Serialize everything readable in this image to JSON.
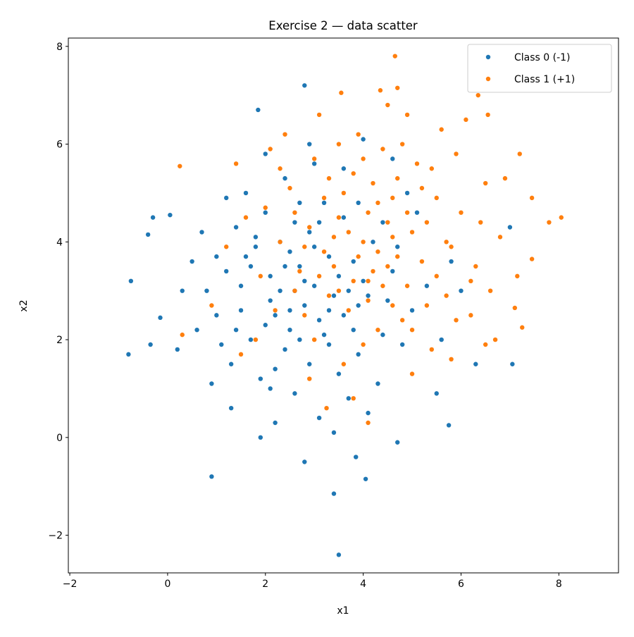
{
  "chart_data": {
    "type": "scatter",
    "title": "Exercise 2 — data scatter",
    "xlabel": "x1",
    "ylabel": "x2",
    "xlim": [
      -2.03,
      9.22
    ],
    "ylim": [
      -2.77,
      8.17
    ],
    "xticks": [
      -2,
      0,
      2,
      4,
      6,
      8
    ],
    "yticks": [
      -2,
      0,
      2,
      4,
      6,
      8
    ],
    "xtick_labels": [
      "−2",
      "0",
      "2",
      "4",
      "6",
      "8"
    ],
    "ytick_labels": [
      "−2",
      "0",
      "2",
      "4",
      "6",
      "8"
    ],
    "grid": false,
    "legend_position": "top-right",
    "series": [
      {
        "name": "Class 0 (-1)",
        "color": "#1f77b4",
        "points": [
          [
            -0.8,
            1.7
          ],
          [
            -0.75,
            3.2
          ],
          [
            -0.4,
            4.15
          ],
          [
            -0.3,
            4.5
          ],
          [
            0.05,
            4.55
          ],
          [
            0.9,
            -0.8
          ],
          [
            3.4,
            -1.15
          ],
          [
            3.5,
            -2.4
          ],
          [
            4.05,
            -0.85
          ],
          [
            2.8,
            7.2
          ],
          [
            1.85,
            6.7
          ],
          [
            7.0,
            4.3
          ],
          [
            7.05,
            1.5
          ],
          [
            5.75,
            0.25
          ],
          [
            4.7,
            -0.1
          ],
          [
            6.3,
            1.5
          ],
          [
            2.8,
            -0.5
          ],
          [
            3.85,
            -0.4
          ],
          [
            -0.15,
            2.45
          ],
          [
            -0.35,
            1.9
          ],
          [
            1.2,
            3.4
          ],
          [
            2.1,
            2.8
          ],
          [
            3.0,
            3.1
          ],
          [
            2.5,
            2.2
          ],
          [
            3.6,
            2.5
          ],
          [
            1.8,
            3.9
          ],
          [
            2.9,
            4.2
          ],
          [
            3.3,
            1.9
          ],
          [
            4.1,
            2.9
          ],
          [
            2.2,
            1.4
          ],
          [
            1.5,
            2.6
          ],
          [
            3.8,
            3.6
          ],
          [
            2.7,
            3.5
          ],
          [
            3.1,
            2.4
          ],
          [
            2.0,
            4.6
          ],
          [
            4.4,
            2.1
          ],
          [
            1.1,
            1.9
          ],
          [
            2.6,
            0.9
          ],
          [
            3.5,
            3.3
          ],
          [
            0.8,
            3.0
          ],
          [
            2.3,
            3.0
          ],
          [
            3.9,
            1.7
          ],
          [
            1.7,
            2.0
          ],
          [
            2.8,
            2.7
          ],
          [
            4.6,
            3.4
          ],
          [
            3.2,
            4.8
          ],
          [
            1.4,
            4.3
          ],
          [
            2.4,
            5.3
          ],
          [
            5.0,
            2.6
          ],
          [
            3.7,
            0.8
          ],
          [
            1.9,
            1.2
          ],
          [
            2.5,
            3.8
          ],
          [
            3.4,
            2.9
          ],
          [
            4.2,
            4.0
          ],
          [
            0.5,
            3.6
          ],
          [
            1.0,
            2.5
          ],
          [
            2.9,
            1.5
          ],
          [
            3.6,
            4.5
          ],
          [
            2.1,
            3.3
          ],
          [
            4.8,
            1.9
          ],
          [
            1.6,
            5.0
          ],
          [
            3.0,
            5.6
          ],
          [
            2.7,
            2.0
          ],
          [
            5.3,
            3.1
          ],
          [
            1.3,
            1.5
          ],
          [
            2.2,
            0.3
          ],
          [
            4.0,
            3.2
          ],
          [
            3.3,
            3.7
          ],
          [
            0.7,
            4.2
          ],
          [
            2.0,
            2.3
          ],
          [
            3.8,
            2.2
          ],
          [
            1.5,
            3.1
          ],
          [
            4.5,
            2.8
          ],
          [
            2.6,
            4.4
          ],
          [
            3.1,
            0.4
          ],
          [
            1.9,
            0.0
          ],
          [
            5.6,
            2.0
          ],
          [
            0.3,
            3.0
          ],
          [
            2.3,
            4.0
          ],
          [
            3.5,
            1.3
          ],
          [
            4.3,
            1.1
          ],
          [
            1.2,
            4.9
          ],
          [
            2.8,
            3.2
          ],
          [
            3.9,
            4.8
          ],
          [
            1.7,
            3.5
          ],
          [
            2.4,
            1.8
          ],
          [
            5.1,
            4.6
          ],
          [
            0.9,
            1.1
          ],
          [
            3.2,
            2.1
          ],
          [
            4.7,
            3.9
          ],
          [
            2.0,
            5.8
          ],
          [
            1.4,
            2.2
          ],
          [
            3.6,
            5.5
          ],
          [
            2.5,
            2.6
          ],
          [
            4.1,
            0.5
          ],
          [
            1.8,
            4.1
          ],
          [
            3.0,
            3.9
          ],
          [
            6.0,
            3.0
          ],
          [
            0.2,
            1.8
          ],
          [
            2.9,
            6.0
          ],
          [
            4.9,
            5.0
          ],
          [
            3.4,
            0.1
          ],
          [
            2.1,
            1.0
          ],
          [
            1.6,
            3.7
          ],
          [
            3.7,
            3.0
          ],
          [
            5.5,
            0.9
          ],
          [
            2.6,
            3.0
          ],
          [
            4.4,
            4.4
          ],
          [
            1.0,
            3.7
          ],
          [
            3.3,
            2.6
          ],
          [
            2.2,
            2.5
          ],
          [
            0.6,
            2.2
          ],
          [
            4.0,
            6.1
          ],
          [
            2.7,
            4.8
          ],
          [
            5.8,
            3.6
          ],
          [
            3.9,
            2.7
          ],
          [
            1.3,
            0.6
          ],
          [
            4.6,
            5.7
          ],
          [
            2.4,
            3.5
          ],
          [
            3.1,
            4.4
          ]
        ]
      },
      {
        "name": "Class 1 (+1)",
        "color": "#ff7f0e",
        "points": [
          [
            4.65,
            7.8
          ],
          [
            8.05,
            4.5
          ],
          [
            7.8,
            4.4
          ],
          [
            7.45,
            4.9
          ],
          [
            7.45,
            3.65
          ],
          [
            7.25,
            2.25
          ],
          [
            0.25,
            5.55
          ],
          [
            0.3,
            2.1
          ],
          [
            6.55,
            6.6
          ],
          [
            6.35,
            7.0
          ],
          [
            7.2,
            5.8
          ],
          [
            7.15,
            3.3
          ],
          [
            7.1,
            2.65
          ],
          [
            3.25,
            0.6
          ],
          [
            4.1,
            0.3
          ],
          [
            3.55,
            7.05
          ],
          [
            4.35,
            7.1
          ],
          [
            4.7,
            7.15
          ],
          [
            4.0,
            4.0
          ],
          [
            3.5,
            4.5
          ],
          [
            4.5,
            3.5
          ],
          [
            3.8,
            3.2
          ],
          [
            4.3,
            4.8
          ],
          [
            5.0,
            4.2
          ],
          [
            3.2,
            3.8
          ],
          [
            4.7,
            5.3
          ],
          [
            3.6,
            5.0
          ],
          [
            5.2,
            3.6
          ],
          [
            4.1,
            2.8
          ],
          [
            2.9,
            4.3
          ],
          [
            5.5,
            4.9
          ],
          [
            3.3,
            2.9
          ],
          [
            4.8,
            2.4
          ],
          [
            2.5,
            5.1
          ],
          [
            4.4,
            5.9
          ],
          [
            5.8,
            3.9
          ],
          [
            3.0,
            5.7
          ],
          [
            4.2,
            3.4
          ],
          [
            5.3,
            2.7
          ],
          [
            2.7,
            3.4
          ],
          [
            3.9,
            6.2
          ],
          [
            6.0,
            4.6
          ],
          [
            4.6,
            4.1
          ],
          [
            3.4,
            3.5
          ],
          [
            5.1,
            5.6
          ],
          [
            2.3,
            4.0
          ],
          [
            4.0,
            1.9
          ],
          [
            5.7,
            2.9
          ],
          [
            3.7,
            4.2
          ],
          [
            4.9,
            3.1
          ],
          [
            2.8,
            2.5
          ],
          [
            6.3,
            3.5
          ],
          [
            3.1,
            6.6
          ],
          [
            4.5,
            6.8
          ],
          [
            5.4,
            1.8
          ],
          [
            2.1,
            5.9
          ],
          [
            6.5,
            5.2
          ],
          [
            3.8,
            5.4
          ],
          [
            4.3,
            2.2
          ],
          [
            5.9,
            5.8
          ],
          [
            2.6,
            3.0
          ],
          [
            4.1,
            4.6
          ],
          [
            4.9,
            4.6
          ],
          [
            3.5,
            3.0
          ],
          [
            6.2,
            2.5
          ],
          [
            1.6,
            4.5
          ],
          [
            5.0,
            1.3
          ],
          [
            3.6,
            1.5
          ],
          [
            4.7,
            3.7
          ],
          [
            2.4,
            6.2
          ],
          [
            5.6,
            6.3
          ],
          [
            6.8,
            4.1
          ],
          [
            3.2,
            4.9
          ],
          [
            4.2,
            5.2
          ],
          [
            5.3,
            4.4
          ],
          [
            1.9,
            3.3
          ],
          [
            3.0,
            2.0
          ],
          [
            6.6,
            3.0
          ],
          [
            4.4,
            3.1
          ],
          [
            3.9,
            3.7
          ],
          [
            5.8,
            1.6
          ],
          [
            2.2,
            2.6
          ],
          [
            4.6,
            2.7
          ],
          [
            6.1,
            6.5
          ],
          [
            1.4,
            5.6
          ],
          [
            3.3,
            5.3
          ],
          [
            5.2,
            5.1
          ],
          [
            2.0,
            4.7
          ],
          [
            4.8,
            6.0
          ],
          [
            6.4,
            4.4
          ],
          [
            3.7,
            2.6
          ],
          [
            1.2,
            3.9
          ],
          [
            5.5,
            3.3
          ],
          [
            4.0,
            5.7
          ],
          [
            2.9,
            1.2
          ],
          [
            6.9,
            5.3
          ],
          [
            3.4,
            4.1
          ],
          [
            4.5,
            4.4
          ],
          [
            5.0,
            2.2
          ],
          [
            2.6,
            4.6
          ],
          [
            6.7,
            2.0
          ],
          [
            3.8,
            0.8
          ],
          [
            4.9,
            6.6
          ],
          [
            1.8,
            2.0
          ],
          [
            5.7,
            4.0
          ],
          [
            3.1,
            3.3
          ],
          [
            4.3,
            3.8
          ],
          [
            6.2,
            3.2
          ],
          [
            2.3,
            5.5
          ],
          [
            5.4,
            5.5
          ],
          [
            3.5,
            6.0
          ],
          [
            0.9,
            2.7
          ],
          [
            4.1,
            3.2
          ],
          [
            5.9,
            2.4
          ],
          [
            2.8,
            3.9
          ],
          [
            4.6,
            4.9
          ],
          [
            6.5,
            1.9
          ],
          [
            1.5,
            1.7
          ]
        ]
      }
    ]
  }
}
